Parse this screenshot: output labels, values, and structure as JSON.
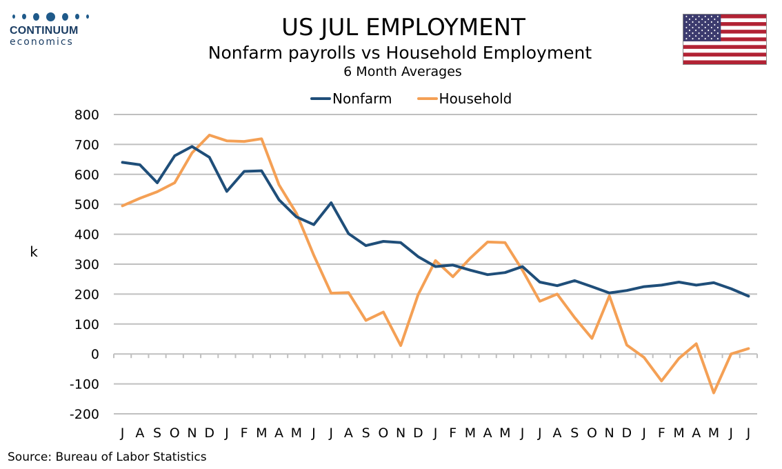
{
  "header": {
    "logo_name": "CONTINUUM",
    "logo_sub": "economics",
    "title": "US JUL EMPLOYMENT",
    "subtitle": "Nonfarm payrolls vs Household Employment",
    "subtitle2": "6 Month Averages"
  },
  "flag_icon": "us-flag-icon",
  "source": "Source: Bureau of Labor Statistics",
  "colors": {
    "nonfarm": "#1f4e79",
    "household": "#f4a055",
    "grid": "#bfbfbf"
  },
  "chart_data": {
    "type": "line",
    "title": "US JUL EMPLOYMENT",
    "ylabel": "k",
    "xlabel": "",
    "ylim": [
      -200,
      800
    ],
    "yticks": [
      800,
      700,
      600,
      500,
      400,
      300,
      200,
      100,
      0,
      -100,
      -200
    ],
    "grid": true,
    "legend": "top-center",
    "categories": [
      "J",
      "A",
      "S",
      "O",
      "N",
      "D",
      "J",
      "F",
      "M",
      "A",
      "M",
      "J",
      "J",
      "A",
      "S",
      "O",
      "N",
      "D",
      "J",
      "F",
      "M",
      "A",
      "M",
      "J",
      "J",
      "A",
      "S",
      "O",
      "N",
      "D",
      "J",
      "F",
      "M",
      "A",
      "M",
      "J",
      "J"
    ],
    "series": [
      {
        "name": "Nonfarm",
        "values": [
          640,
          632,
          572,
          662,
          693,
          657,
          543,
          610,
          612,
          515,
          458,
          432,
          505,
          402,
          362,
          376,
          372,
          325,
          292,
          297,
          280,
          265,
          272,
          292,
          240,
          228,
          245,
          225,
          204,
          212,
          225,
          230,
          240,
          230,
          238,
          218,
          193
        ]
      },
      {
        "name": "Household",
        "values": [
          495,
          520,
          542,
          572,
          672,
          731,
          712,
          710,
          719,
          565,
          470,
          330,
          203,
          205,
          112,
          140,
          28,
          198,
          312,
          258,
          320,
          374,
          372,
          280,
          176,
          200,
          122,
          52,
          194,
          30,
          -12,
          -90,
          -15,
          34,
          -130,
          0,
          18
        ]
      }
    ]
  }
}
